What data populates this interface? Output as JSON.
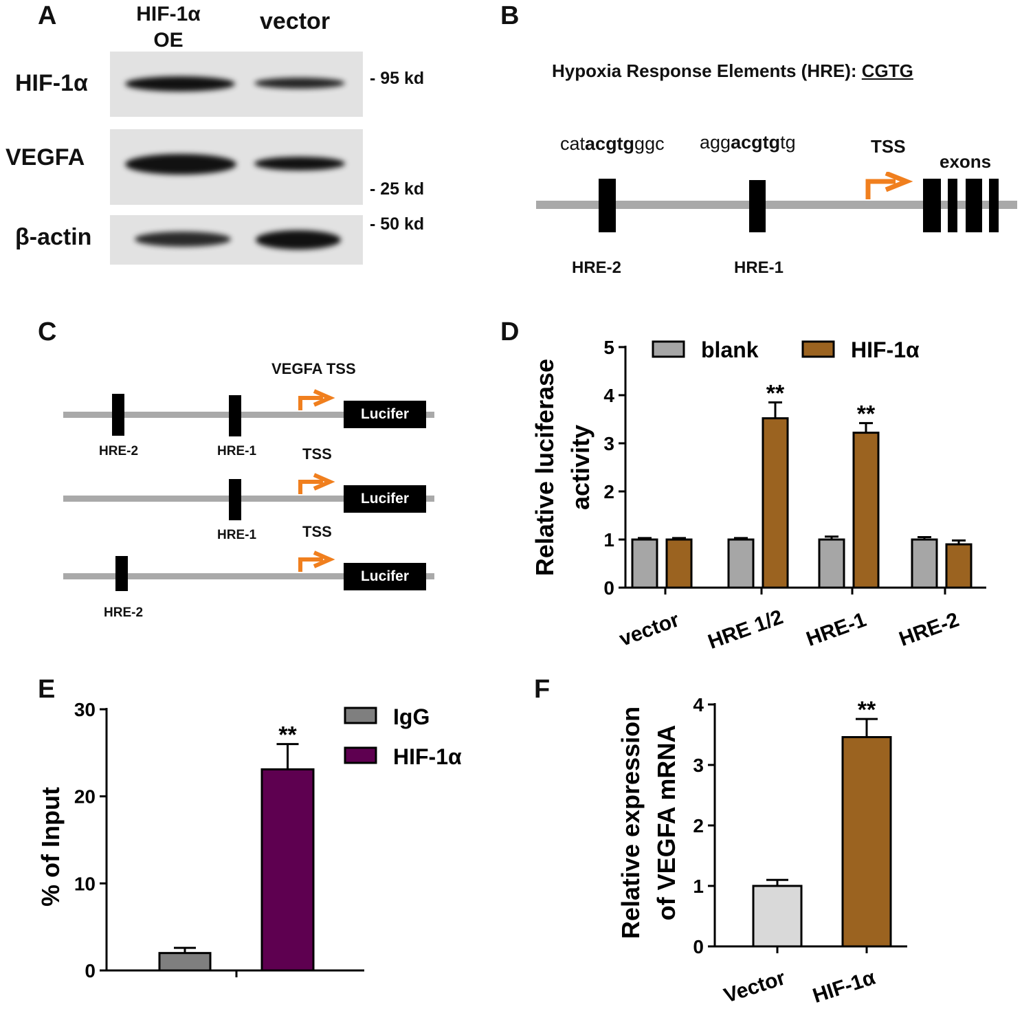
{
  "panelA": {
    "letter": "A",
    "col_hif": "HIF-1α",
    "col_hif_oe": "OE",
    "col_vector": "vector",
    "rows": [
      "HIF-1α",
      "VEGFA",
      "β-actin"
    ],
    "markers": [
      "- 95 kd",
      "- 25 kd",
      "- 50 kd"
    ]
  },
  "panelB": {
    "letter": "B",
    "title_prefix": "Hypoxia Response Elements (HRE): ",
    "title_seq": "CGTG",
    "seq2_pre": "cat",
    "seq2_bold": "acgtg",
    "seq2_post": "ggc",
    "seq1_pre": "agg",
    "seq1_bold": "acgtg",
    "seq1_post": "tg",
    "tss": "TSS",
    "exons": "exons",
    "hre2": "HRE-2",
    "hre1": "HRE-1"
  },
  "panelC": {
    "letter": "C",
    "vegfa_tss": "VEGFA TSS",
    "tss": "TSS",
    "lucifer": "Lucifer",
    "hre2": "HRE-2",
    "hre1": "HRE-1"
  },
  "panelD": {
    "letter": "D",
    "chart_data": {
      "type": "bar",
      "ylabel_line1": "Relative luciferase",
      "ylabel_line2": "activity",
      "categories": [
        "vector",
        "HRE 1/2",
        "HRE-1",
        "HRE-2"
      ],
      "ylim": [
        0,
        5
      ],
      "yticks": [
        "0",
        "1",
        "2",
        "3",
        "4",
        "5"
      ],
      "series": [
        {
          "name": "blank",
          "color": "#a6a6a6",
          "values": [
            1.0,
            1.0,
            1.0,
            1.0
          ],
          "errors": [
            0.03,
            0.03,
            0.06,
            0.05
          ]
        },
        {
          "name": "HIF-1α",
          "color": "#9b6320",
          "values": [
            1.0,
            3.52,
            3.22,
            0.9
          ],
          "errors": [
            0.03,
            0.33,
            0.2,
            0.08
          ]
        }
      ],
      "annotations": [
        "",
        "**",
        "**",
        ""
      ],
      "legend": "top"
    }
  },
  "panelE": {
    "letter": "E",
    "chart_data": {
      "type": "bar",
      "ylabel": "% of Input",
      "categories": [
        "IgG",
        "HIF-1α"
      ],
      "values": [
        2.0,
        23.1
      ],
      "errors": [
        0.6,
        2.9
      ],
      "colors": [
        "#7f7f7f",
        "#5e0050"
      ],
      "ylim": [
        0,
        30
      ],
      "yticks": [
        "0",
        "10",
        "20",
        "30"
      ],
      "legend": [
        "IgG",
        "HIF-1α"
      ],
      "annotation": "**"
    }
  },
  "panelF": {
    "letter": "F",
    "chart_data": {
      "type": "bar",
      "ylabel_line1": "Relative expression",
      "ylabel_line2": "of VEGFA mRNA",
      "categories": [
        "Vector",
        "HIF-1α"
      ],
      "values": [
        1.0,
        3.46
      ],
      "errors": [
        0.1,
        0.3
      ],
      "colors": [
        "#d9d9d9",
        "#9b6320"
      ],
      "ylim": [
        0,
        4
      ],
      "yticks": [
        "0",
        "1",
        "2",
        "3",
        "4"
      ],
      "annotation": "**"
    }
  }
}
